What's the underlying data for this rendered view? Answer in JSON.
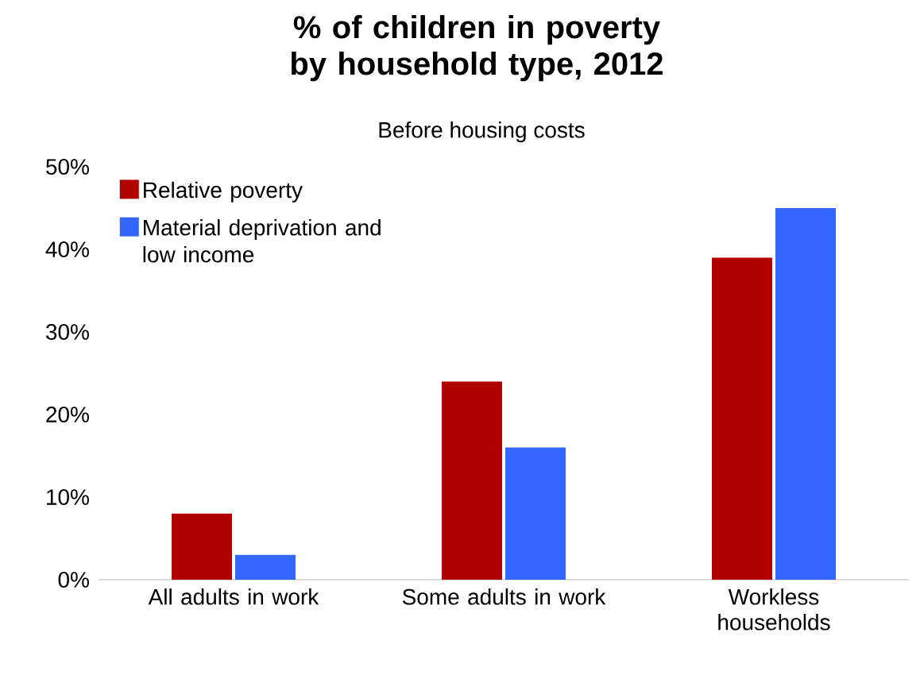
{
  "chart_data": {
    "type": "bar",
    "title": "% of children in poverty by household type, 2012",
    "subtitle": "Before housing costs",
    "categories": [
      "All adults in work",
      "Some adults in work",
      "Workless households"
    ],
    "series": [
      {
        "name": "Relative poverty",
        "color": "#b00000",
        "values": [
          8,
          24,
          39
        ]
      },
      {
        "name": "Material deprivation and low income",
        "color": "#3366ff",
        "values": [
          3,
          16,
          45
        ]
      }
    ],
    "ylim": [
      0,
      50
    ],
    "yticks": [
      {
        "value": 0,
        "label": "0%"
      },
      {
        "value": 10,
        "label": "10%"
      },
      {
        "value": 20,
        "label": "20%"
      },
      {
        "value": 30,
        "label": "30%"
      },
      {
        "value": 40,
        "label": "40%"
      },
      {
        "value": 50,
        "label": "50%"
      }
    ],
    "legend": "top left"
  }
}
